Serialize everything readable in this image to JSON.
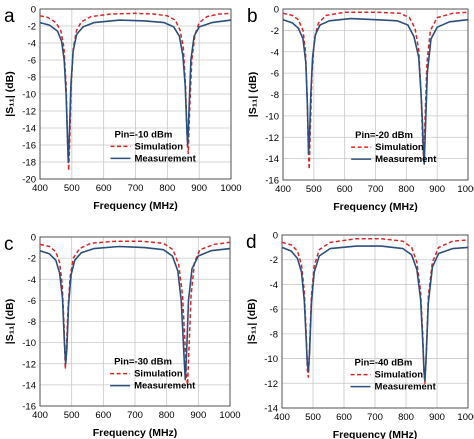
{
  "colors": {
    "simulation": "#d62728",
    "measurement": "#2b4f7a",
    "grid": "#c8c8c8",
    "axis": "#444444"
  },
  "chart_data": [
    {
      "type": "line",
      "panel_label": "a",
      "xlabel": "Frequency (MHz)",
      "ylabel": "|S₁₁| (dB)",
      "xlim": [
        400,
        1000
      ],
      "ylim": [
        -20,
        0
      ],
      "xticks": [
        400,
        500,
        600,
        700,
        800,
        900,
        1000
      ],
      "yticks": [
        0,
        -2,
        -4,
        -6,
        -8,
        -10,
        -12,
        -14,
        -16,
        -18,
        -20
      ],
      "grid": true,
      "annotation": "Pin=-10 dBm",
      "legend": "lower-right",
      "series": [
        {
          "name": "Simulation",
          "style": "dashed",
          "points": [
            [
              400,
              -0.8
            ],
            [
              425,
              -1.0
            ],
            [
              450,
              -1.6
            ],
            [
              465,
              -2.5
            ],
            [
              475,
              -4.5
            ],
            [
              482,
              -9
            ],
            [
              487,
              -16
            ],
            [
              490,
              -19
            ],
            [
              493,
              -16
            ],
            [
              498,
              -9
            ],
            [
              505,
              -4.5
            ],
            [
              515,
              -2.5
            ],
            [
              530,
              -1.5
            ],
            [
              560,
              -0.9
            ],
            [
              620,
              -0.6
            ],
            [
              700,
              -0.5
            ],
            [
              760,
              -0.6
            ],
            [
              800,
              -0.8
            ],
            [
              825,
              -1.3
            ],
            [
              840,
              -2.5
            ],
            [
              850,
              -4.5
            ],
            [
              857,
              -9
            ],
            [
              863,
              -16
            ],
            [
              866,
              -17
            ],
            [
              870,
              -12
            ],
            [
              877,
              -6
            ],
            [
              887,
              -3
            ],
            [
              900,
              -1.6
            ],
            [
              925,
              -0.9
            ],
            [
              960,
              -0.6
            ],
            [
              1000,
              -0.5
            ]
          ]
        },
        {
          "name": "Measurement",
          "style": "solid",
          "points": [
            [
              400,
              -1.6
            ],
            [
              430,
              -1.9
            ],
            [
              455,
              -2.6
            ],
            [
              468,
              -3.8
            ],
            [
              476,
              -6
            ],
            [
              482,
              -10
            ],
            [
              486,
              -15
            ],
            [
              489,
              -18
            ],
            [
              492,
              -15
            ],
            [
              497,
              -9
            ],
            [
              504,
              -5
            ],
            [
              515,
              -3
            ],
            [
              535,
              -2.1
            ],
            [
              570,
              -1.6
            ],
            [
              650,
              -1.3
            ],
            [
              730,
              -1.4
            ],
            [
              790,
              -1.6
            ],
            [
              820,
              -2.1
            ],
            [
              838,
              -3.2
            ],
            [
              849,
              -5.5
            ],
            [
              856,
              -9
            ],
            [
              861,
              -14
            ],
            [
              864,
              -16
            ],
            [
              868,
              -12
            ],
            [
              874,
              -6
            ],
            [
              884,
              -3.2
            ],
            [
              900,
              -2.1
            ],
            [
              940,
              -1.6
            ],
            [
              1000,
              -1.3
            ]
          ]
        }
      ]
    },
    {
      "type": "line",
      "panel_label": "b",
      "xlabel": "Frequency (MHz)",
      "ylabel": "|S₁₁| (dB)",
      "xlim": [
        400,
        1000
      ],
      "ylim": [
        -16,
        0
      ],
      "xticks": [
        400,
        500,
        600,
        700,
        800,
        900,
        1000
      ],
      "yticks": [
        0,
        -2,
        -4,
        -6,
        -8,
        -10,
        -12,
        -14,
        -16
      ],
      "grid": true,
      "annotation": "Pin=-20 dBm",
      "legend": "lower-right",
      "series": [
        {
          "name": "Simulation",
          "style": "dashed",
          "points": [
            [
              400,
              -0.4
            ],
            [
              430,
              -0.6
            ],
            [
              450,
              -1.0
            ],
            [
              465,
              -2.0
            ],
            [
              473,
              -4
            ],
            [
              478,
              -8
            ],
            [
              482,
              -13
            ],
            [
              485,
              -15
            ],
            [
              488,
              -12
            ],
            [
              494,
              -6
            ],
            [
              502,
              -2.8
            ],
            [
              515,
              -1.3
            ],
            [
              540,
              -0.6
            ],
            [
              600,
              -0.3
            ],
            [
              700,
              -0.3
            ],
            [
              780,
              -0.4
            ],
            [
              810,
              -0.8
            ],
            [
              828,
              -1.8
            ],
            [
              840,
              -3.8
            ],
            [
              848,
              -8
            ],
            [
              853,
              -12.5
            ],
            [
              856,
              -14
            ],
            [
              860,
              -11
            ],
            [
              867,
              -5
            ],
            [
              878,
              -2
            ],
            [
              900,
              -0.8
            ],
            [
              950,
              -0.4
            ],
            [
              1000,
              -0.3
            ]
          ]
        },
        {
          "name": "Measurement",
          "style": "solid",
          "points": [
            [
              400,
              -1.0
            ],
            [
              430,
              -1.3
            ],
            [
              450,
              -1.8
            ],
            [
              465,
              -2.8
            ],
            [
              474,
              -5
            ],
            [
              479,
              -9
            ],
            [
              483,
              -13.5
            ],
            [
              486,
              -12
            ],
            [
              490,
              -8
            ],
            [
              496,
              -4.5
            ],
            [
              505,
              -2.4
            ],
            [
              520,
              -1.5
            ],
            [
              550,
              -1.1
            ],
            [
              620,
              -0.9
            ],
            [
              700,
              -1.0
            ],
            [
              770,
              -1.1
            ],
            [
              805,
              -1.5
            ],
            [
              825,
              -2.6
            ],
            [
              840,
              -4.5
            ],
            [
              848,
              -8
            ],
            [
              852,
              -10.5
            ],
            [
              855,
              -13
            ],
            [
              858,
              -14.5
            ],
            [
              862,
              -11
            ],
            [
              868,
              -6
            ],
            [
              880,
              -2.8
            ],
            [
              900,
              -1.7
            ],
            [
              940,
              -1.2
            ],
            [
              1000,
              -1.0
            ]
          ]
        }
      ]
    },
    {
      "type": "line",
      "panel_label": "c",
      "xlabel": "Frequency (MHz)",
      "ylabel": "|S₁₁| (dB)",
      "xlim": [
        400,
        1000
      ],
      "ylim": [
        -16,
        0
      ],
      "xticks": [
        400,
        500,
        600,
        700,
        800,
        900,
        1000
      ],
      "yticks": [
        0,
        -2,
        -4,
        -6,
        -8,
        -10,
        -12,
        -14,
        -16
      ],
      "grid": true,
      "annotation": "Pin=-30 dBm",
      "legend": "lower-right",
      "series": [
        {
          "name": "Simulation",
          "style": "dashed",
          "points": [
            [
              400,
              -0.7
            ],
            [
              430,
              -0.9
            ],
            [
              450,
              -1.4
            ],
            [
              462,
              -2.4
            ],
            [
              470,
              -4.5
            ],
            [
              476,
              -8.5
            ],
            [
              480,
              -12.5
            ],
            [
              483,
              -11
            ],
            [
              488,
              -7
            ],
            [
              495,
              -3.8
            ],
            [
              505,
              -2.0
            ],
            [
              525,
              -1.1
            ],
            [
              560,
              -0.6
            ],
            [
              640,
              -0.4
            ],
            [
              720,
              -0.4
            ],
            [
              790,
              -0.6
            ],
            [
              820,
              -1.2
            ],
            [
              838,
              -2.6
            ],
            [
              850,
              -5.5
            ],
            [
              858,
              -10
            ],
            [
              863,
              -13.5
            ],
            [
              866,
              -14
            ],
            [
              870,
              -11
            ],
            [
              877,
              -5.5
            ],
            [
              888,
              -2.4
            ],
            [
              905,
              -1.2
            ],
            [
              950,
              -0.7
            ],
            [
              1000,
              -0.5
            ]
          ]
        },
        {
          "name": "Measurement",
          "style": "solid",
          "points": [
            [
              400,
              -1.3
            ],
            [
              430,
              -1.6
            ],
            [
              450,
              -2.2
            ],
            [
              462,
              -3.4
            ],
            [
              471,
              -5.8
            ],
            [
              477,
              -10
            ],
            [
              481,
              -12
            ],
            [
              485,
              -10.5
            ],
            [
              490,
              -6.5
            ],
            [
              498,
              -3.6
            ],
            [
              510,
              -2.2
            ],
            [
              530,
              -1.5
            ],
            [
              570,
              -1.1
            ],
            [
              650,
              -0.9
            ],
            [
              730,
              -1.0
            ],
            [
              790,
              -1.2
            ],
            [
              818,
              -1.8
            ],
            [
              835,
              -3.2
            ],
            [
              846,
              -6
            ],
            [
              852,
              -9.5
            ],
            [
              856,
              -12
            ],
            [
              859,
              -13.5
            ],
            [
              863,
              -11
            ],
            [
              869,
              -6
            ],
            [
              880,
              -3
            ],
            [
              900,
              -1.8
            ],
            [
              940,
              -1.3
            ],
            [
              1000,
              -1.1
            ]
          ]
        }
      ]
    },
    {
      "type": "line",
      "panel_label": "d",
      "xlabel": "Frequency (MHz)",
      "ylabel": "|S₁₁| (dB)",
      "xlim": [
        400,
        1000
      ],
      "ylim": [
        -14,
        0
      ],
      "xticks": [
        400,
        500,
        600,
        700,
        800,
        900,
        1000
      ],
      "yticks": [
        0,
        -2,
        -4,
        -6,
        -8,
        -10,
        -12,
        -14
      ],
      "grid": true,
      "annotation": "Pin=-40 dBm",
      "legend": "lower-right",
      "series": [
        {
          "name": "Simulation",
          "style": "dashed",
          "points": [
            [
              400,
              -0.6
            ],
            [
              430,
              -0.8
            ],
            [
              450,
              -1.3
            ],
            [
              463,
              -2.4
            ],
            [
              472,
              -4.6
            ],
            [
              478,
              -8
            ],
            [
              482,
              -11
            ],
            [
              485,
              -11.5
            ],
            [
              489,
              -9
            ],
            [
              495,
              -5
            ],
            [
              504,
              -2.5
            ],
            [
              520,
              -1.2
            ],
            [
              555,
              -0.6
            ],
            [
              640,
              -0.3
            ],
            [
              720,
              -0.3
            ],
            [
              790,
              -0.5
            ],
            [
              818,
              -1.0
            ],
            [
              835,
              -2.2
            ],
            [
              847,
              -4.6
            ],
            [
              854,
              -8
            ],
            [
              858,
              -11
            ],
            [
              861,
              -12
            ],
            [
              865,
              -10
            ],
            [
              872,
              -5
            ],
            [
              885,
              -2.2
            ],
            [
              905,
              -1.0
            ],
            [
              950,
              -0.5
            ],
            [
              1000,
              -0.4
            ]
          ]
        },
        {
          "name": "Measurement",
          "style": "solid",
          "points": [
            [
              400,
              -1.0
            ],
            [
              430,
              -1.3
            ],
            [
              450,
              -1.9
            ],
            [
              463,
              -3.0
            ],
            [
              472,
              -5.3
            ],
            [
              478,
              -8.5
            ],
            [
              482,
              -10.5
            ],
            [
              485,
              -11
            ],
            [
              489,
              -9.5
            ],
            [
              495,
              -5.5
            ],
            [
              504,
              -3.0
            ],
            [
              520,
              -1.7
            ],
            [
              555,
              -1.1
            ],
            [
              640,
              -0.9
            ],
            [
              720,
              -0.9
            ],
            [
              790,
              -1.1
            ],
            [
              818,
              -1.6
            ],
            [
              835,
              -2.8
            ],
            [
              847,
              -5.2
            ],
            [
              854,
              -8.5
            ],
            [
              858,
              -11
            ],
            [
              861,
              -11.8
            ],
            [
              865,
              -10
            ],
            [
              872,
              -5.5
            ],
            [
              885,
              -2.6
            ],
            [
              905,
              -1.5
            ],
            [
              950,
              -1.1
            ],
            [
              1000,
              -1.0
            ]
          ]
        }
      ]
    }
  ]
}
